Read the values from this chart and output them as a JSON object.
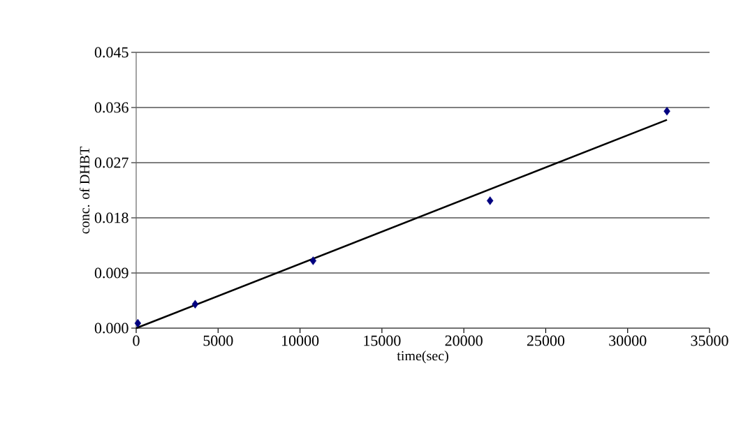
{
  "chart_data": {
    "type": "scatter",
    "xlabel": "time(sec)",
    "ylabel": "conc. of DHBT",
    "series": [
      {
        "color": "#000080",
        "marker": "diamond",
        "x": [
          100,
          3600,
          10800,
          21600,
          32400
        ],
        "values": [
          0.0008,
          0.0039,
          0.011,
          0.0208,
          0.0354
        ]
      },
      {
        "type": "line",
        "color": "#000000",
        "marker": "none",
        "x": [
          0,
          32400
        ],
        "values": [
          0,
          0.034
        ]
      }
    ],
    "xlim": [
      0,
      35000
    ],
    "xticks": [
      0,
      5000,
      10000,
      15000,
      20000,
      25000,
      30000,
      35000
    ],
    "ylim": [
      0,
      0.045
    ],
    "yticks": [
      {
        "value": 0,
        "label": "0.000"
      },
      {
        "value": 0.009,
        "label": "0.009"
      },
      {
        "value": 0.018,
        "label": "0.018"
      },
      {
        "value": 0.027,
        "label": "0.027"
      },
      {
        "value": 0.036,
        "label": "0.036"
      },
      {
        "value": 0.045,
        "label": "0.045"
      }
    ],
    "grid": "y"
  }
}
